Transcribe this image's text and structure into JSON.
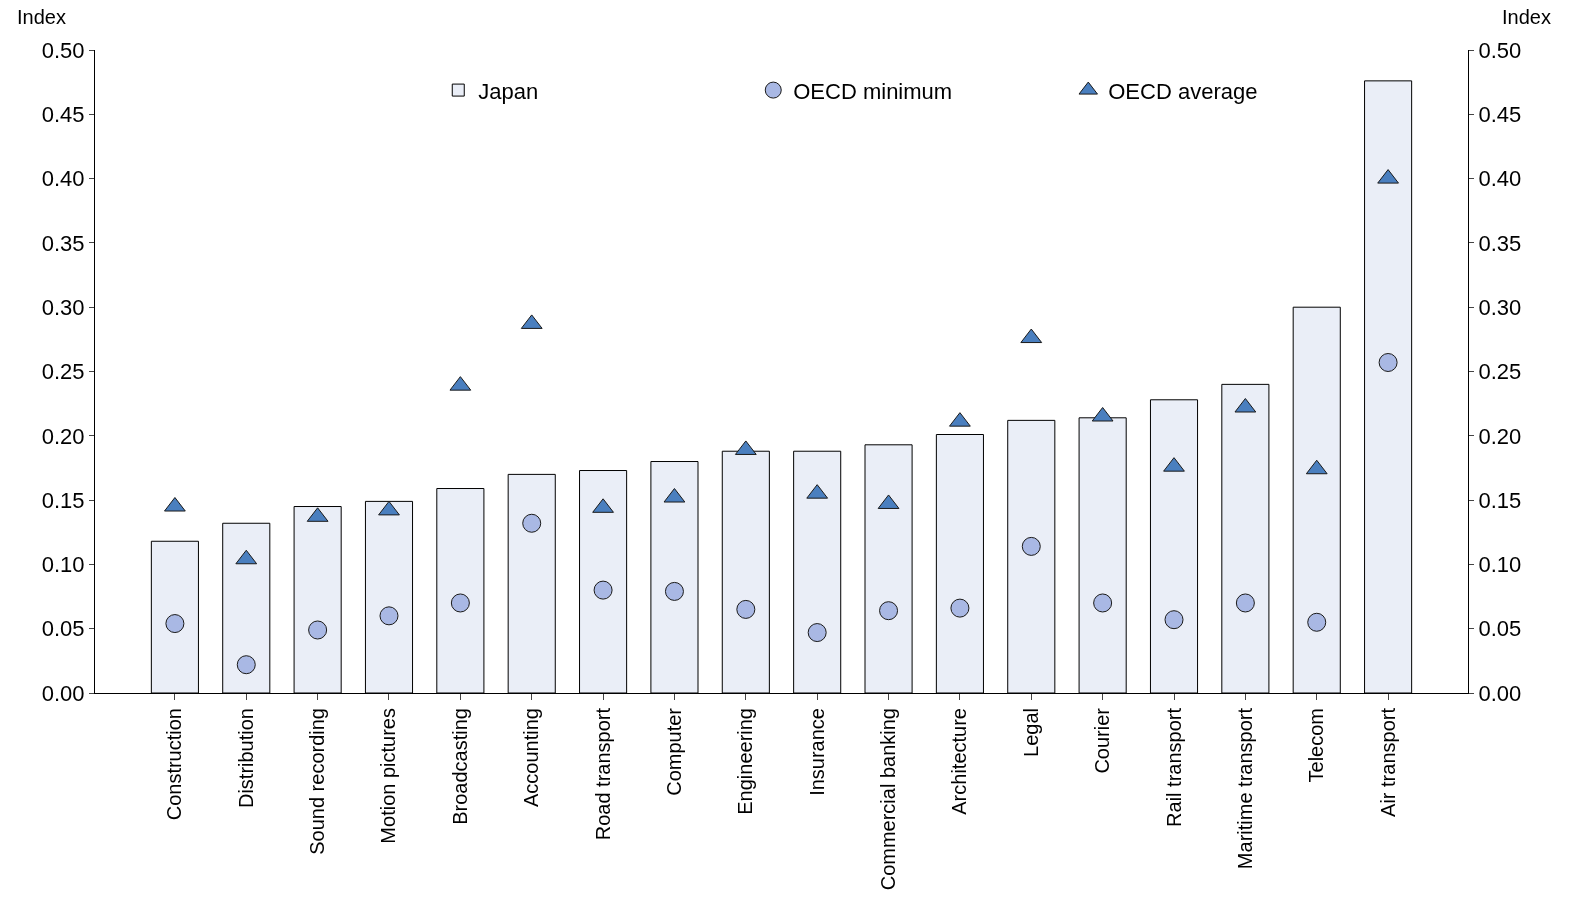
{
  "chart_data": {
    "type": "bar",
    "ylabel": "Index",
    "y2label": "Index",
    "categories": [
      "Construction",
      "Distribution",
      "Sound recording",
      "Motion pictures",
      "Broadcasting",
      "Accounting",
      "Road transport",
      "Computer",
      "Engineering",
      "Insurance",
      "Commercial banking",
      "Architecture",
      "Legal",
      "Courier",
      "Rail transport",
      "Maritime transport",
      "Telecom",
      "Air transport"
    ],
    "series": [
      {
        "name": "Japan",
        "color": "#eaeef7",
        "values": [
          0.118,
          0.132,
          0.145,
          0.149,
          0.159,
          0.17,
          0.173,
          0.18,
          0.188,
          0.188,
          0.193,
          0.201,
          0.212,
          0.214,
          0.228,
          0.24,
          0.3,
          0.476
        ]
      },
      {
        "name": "OECD minimum",
        "type": "scatter",
        "marker": "circle",
        "color": "#a9b8e4",
        "values": [
          0.054,
          0.022,
          0.049,
          0.06,
          0.07,
          0.132,
          0.08,
          0.079,
          0.065,
          0.047,
          0.064,
          0.066,
          0.114,
          0.07,
          0.057,
          0.07,
          0.055,
          0.257
        ]
      },
      {
        "name": "OECD average",
        "type": "scatter",
        "marker": "triangle",
        "color": "#4a7fbf",
        "values": [
          0.145,
          0.104,
          0.137,
          0.142,
          0.239,
          0.287,
          0.144,
          0.152,
          0.189,
          0.155,
          0.147,
          0.211,
          0.276,
          0.215,
          0.176,
          0.222,
          0.174,
          0.4
        ]
      }
    ],
    "ylim": [
      0,
      0.5
    ],
    "yticks": [
      {
        "value": 0,
        "label": "0.00"
      },
      {
        "value": 0.05,
        "label": "0.05"
      },
      {
        "value": 0.1,
        "label": "0.10"
      },
      {
        "value": 0.15,
        "label": "0.15"
      },
      {
        "value": 0.2,
        "label": "0.20"
      },
      {
        "value": 0.25,
        "label": "0.25"
      },
      {
        "value": 0.3,
        "label": "0.30"
      },
      {
        "value": 0.35,
        "label": "0.35"
      },
      {
        "value": 0.4,
        "label": "0.40"
      },
      {
        "value": 0.45,
        "label": "0.45"
      },
      {
        "value": 0.5,
        "label": "0.50"
      }
    ],
    "y2lim": [
      0,
      0.5
    ],
    "y2ticks": [
      {
        "value": 0,
        "label": "0.00"
      },
      {
        "value": 0.05,
        "label": "0.05"
      },
      {
        "value": 0.1,
        "label": "0.10"
      },
      {
        "value": 0.15,
        "label": "0.15"
      },
      {
        "value": 0.2,
        "label": "0.20"
      },
      {
        "value": 0.25,
        "label": "0.25"
      },
      {
        "value": 0.3,
        "label": "0.30"
      },
      {
        "value": 0.35,
        "label": "0.35"
      },
      {
        "value": 0.4,
        "label": "0.40"
      },
      {
        "value": 0.45,
        "label": "0.45"
      },
      {
        "value": 0.5,
        "label": "0.50"
      }
    ],
    "legend": "top"
  }
}
